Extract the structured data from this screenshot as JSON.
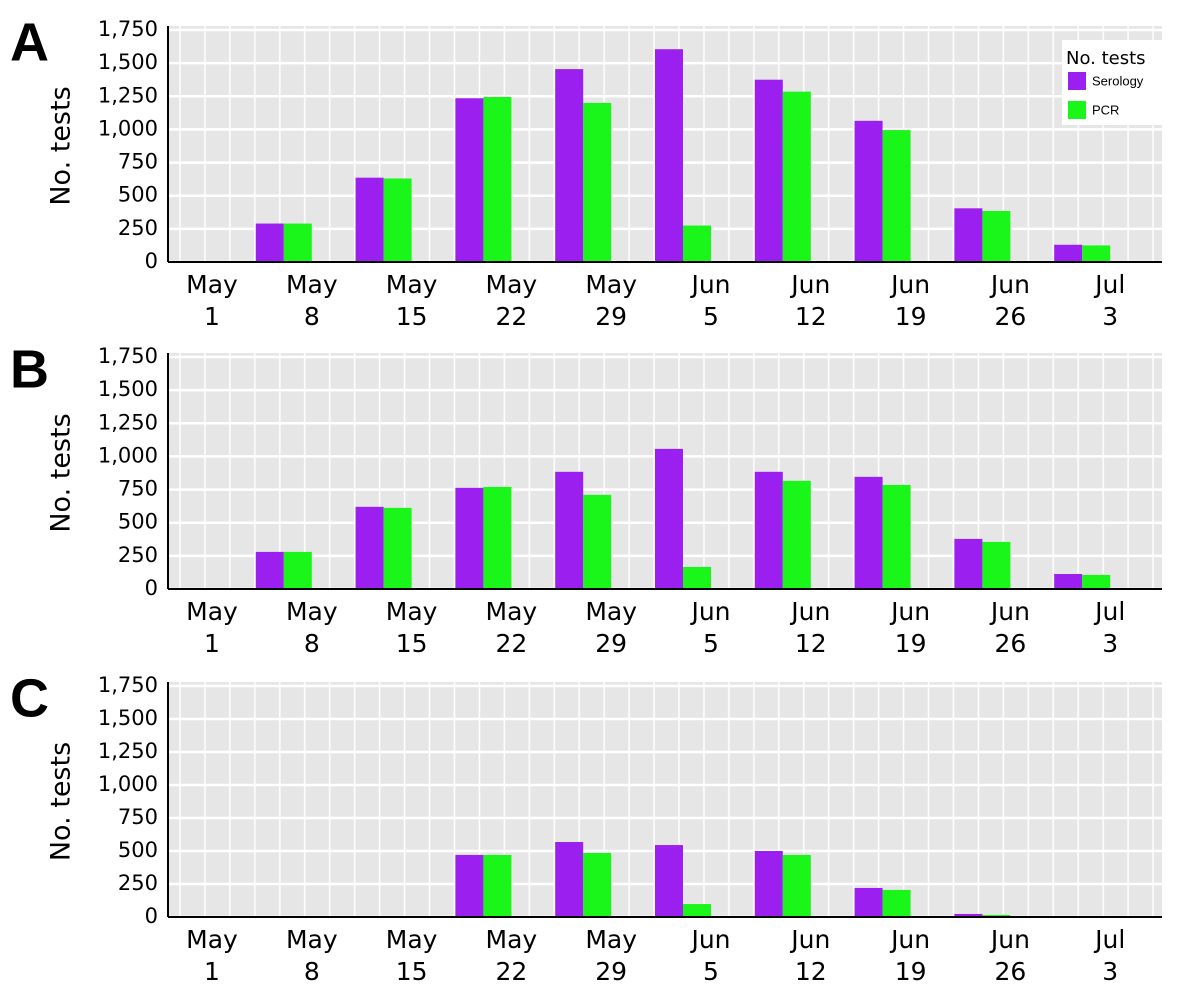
{
  "chart_data": [
    {
      "type": "bar",
      "panel_label": "A",
      "ylabel": "No. tests",
      "categories": [
        [
          "May",
          "1"
        ],
        [
          "May",
          "8"
        ],
        [
          "May",
          "15"
        ],
        [
          "May",
          "22"
        ],
        [
          "May",
          "29"
        ],
        [
          "Jun",
          "5"
        ],
        [
          "Jun",
          "12"
        ],
        [
          "Jun",
          "19"
        ],
        [
          "Jun",
          "26"
        ],
        [
          "Jul",
          "3"
        ]
      ],
      "series": [
        {
          "name": "Serology",
          "color": "#9b1fef",
          "values": [
            0,
            290,
            636,
            1235,
            1455,
            1605,
            1375,
            1065,
            405,
            130
          ]
        },
        {
          "name": "PCR",
          "color": "#1af51a",
          "values": [
            0,
            290,
            630,
            1245,
            1200,
            275,
            1285,
            995,
            385,
            125
          ]
        }
      ],
      "ylim": [
        0,
        1750
      ],
      "yticks": [
        0,
        250,
        500,
        750,
        {
          "value": 1000,
          "label": "1,000"
        },
        {
          "value": 1250,
          "label": "1,250"
        },
        {
          "value": 1500,
          "label": "1,500"
        },
        {
          "value": 1750,
          "label": "1,750"
        }
      ],
      "grid": true,
      "legend": {
        "title": "No. tests",
        "position": "upper right"
      }
    },
    {
      "type": "bar",
      "panel_label": "B",
      "ylabel": "No. tests",
      "categories": [
        [
          "May",
          "1"
        ],
        [
          "May",
          "8"
        ],
        [
          "May",
          "15"
        ],
        [
          "May",
          "22"
        ],
        [
          "May",
          "29"
        ],
        [
          "Jun",
          "5"
        ],
        [
          "Jun",
          "12"
        ],
        [
          "Jun",
          "19"
        ],
        [
          "Jun",
          "26"
        ],
        [
          "Jul",
          "3"
        ]
      ],
      "series": [
        {
          "color": "#9b1fef",
          "values": [
            0,
            280,
            620,
            763,
            884,
            1057,
            884,
            846,
            378,
            113
          ]
        },
        {
          "color": "#1af51a",
          "values": [
            0,
            280,
            612,
            770,
            710,
            166,
            816,
            785,
            355,
            106
          ]
        }
      ],
      "ylim": [
        0,
        1750
      ],
      "yticks": [
        0,
        250,
        500,
        750,
        {
          "value": 1000,
          "label": "1,000"
        },
        {
          "value": 1250,
          "label": "1,250"
        },
        {
          "value": 1500,
          "label": "1,500"
        },
        {
          "value": 1750,
          "label": "1,750"
        }
      ],
      "grid": true
    },
    {
      "type": "bar",
      "panel_label": "C",
      "ylabel": "No. tests",
      "categories": [
        [
          "May",
          "1"
        ],
        [
          "May",
          "8"
        ],
        [
          "May",
          "15"
        ],
        [
          "May",
          "22"
        ],
        [
          "May",
          "29"
        ],
        [
          "Jun",
          "5"
        ],
        [
          "Jun",
          "12"
        ],
        [
          "Jun",
          "19"
        ],
        [
          "Jun",
          "26"
        ],
        [
          "Jul",
          "3"
        ]
      ],
      "series": [
        {
          "color": "#9b1fef",
          "values": [
            0,
            0,
            0,
            470,
            568,
            545,
            500,
            220,
            23,
            0
          ]
        },
        {
          "color": "#1af51a",
          "values": [
            0,
            0,
            0,
            470,
            485,
            98,
            470,
            205,
            15,
            0
          ]
        }
      ],
      "ylim": [
        0,
        1750
      ],
      "yticks": [
        0,
        250,
        500,
        750,
        {
          "value": 1000,
          "label": "1,000"
        },
        {
          "value": 1250,
          "label": "1,250"
        },
        {
          "value": 1500,
          "label": "1,500"
        },
        {
          "value": 1750,
          "label": "1,750"
        }
      ],
      "grid": true
    }
  ]
}
